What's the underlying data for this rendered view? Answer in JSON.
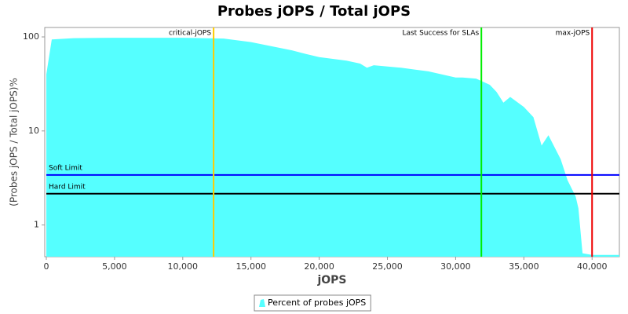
{
  "chart_data": {
    "type": "area",
    "title": "Probes jOPS / Total jOPS",
    "x_label": "jOPS",
    "y_label": "(Probes jOPS / Total jOPS)%",
    "log_y": true,
    "xlim": [
      0,
      42000
    ],
    "ylim": [
      0.46,
      126
    ],
    "xticks": [
      0,
      {
        "value": 5000,
        "label": "5,000"
      },
      {
        "value": 10000,
        "label": "10,000"
      },
      {
        "value": 15000,
        "label": "15,000"
      },
      {
        "value": 20000,
        "label": "20,000"
      },
      {
        "value": 25000,
        "label": "25,000"
      },
      {
        "value": 30000,
        "label": "30,000"
      },
      {
        "value": 35000,
        "label": "35,000"
      },
      {
        "value": 40000,
        "label": "40,000"
      }
    ],
    "yticks": [
      1,
      10,
      100
    ],
    "series": [
      {
        "name": "Percent of probes jOPS",
        "color": "#55ffff",
        "x": [
          0,
          400,
          2000,
          5000,
          10000,
          13000,
          15000,
          17000,
          18000,
          19000,
          20000,
          22000,
          23000,
          23500,
          24000,
          26000,
          27000,
          28000,
          30000,
          30500,
          31500,
          32500,
          33000,
          33500,
          34000,
          35000,
          35700,
          36300,
          36800,
          37300,
          37700,
          38200,
          38800,
          39000,
          39300,
          40000,
          42000
        ],
        "values": [
          40,
          94,
          97,
          98,
          98,
          96,
          88,
          77,
          72,
          66,
          61,
          56,
          52,
          47,
          50,
          47,
          45,
          43,
          37,
          37,
          36,
          31,
          26,
          20,
          23,
          18,
          14,
          7,
          9,
          6.5,
          5,
          3,
          2,
          1.5,
          0.5,
          0.48,
          0.48
        ]
      }
    ],
    "limits": [
      {
        "label": "Soft Limit",
        "value": 3.4,
        "color": "#0000ff"
      },
      {
        "label": "Hard Limit",
        "value": 2.15,
        "color": "#000000"
      }
    ],
    "markers": [
      {
        "label": "critical-jOPS",
        "value": 12260,
        "color": "#ffcc00"
      },
      {
        "label": "Last Success for SLAs",
        "value": 31885,
        "color": "#00ee00"
      },
      {
        "label": "max-jOPS",
        "value": 40000,
        "color": "#ee0000"
      }
    ]
  }
}
